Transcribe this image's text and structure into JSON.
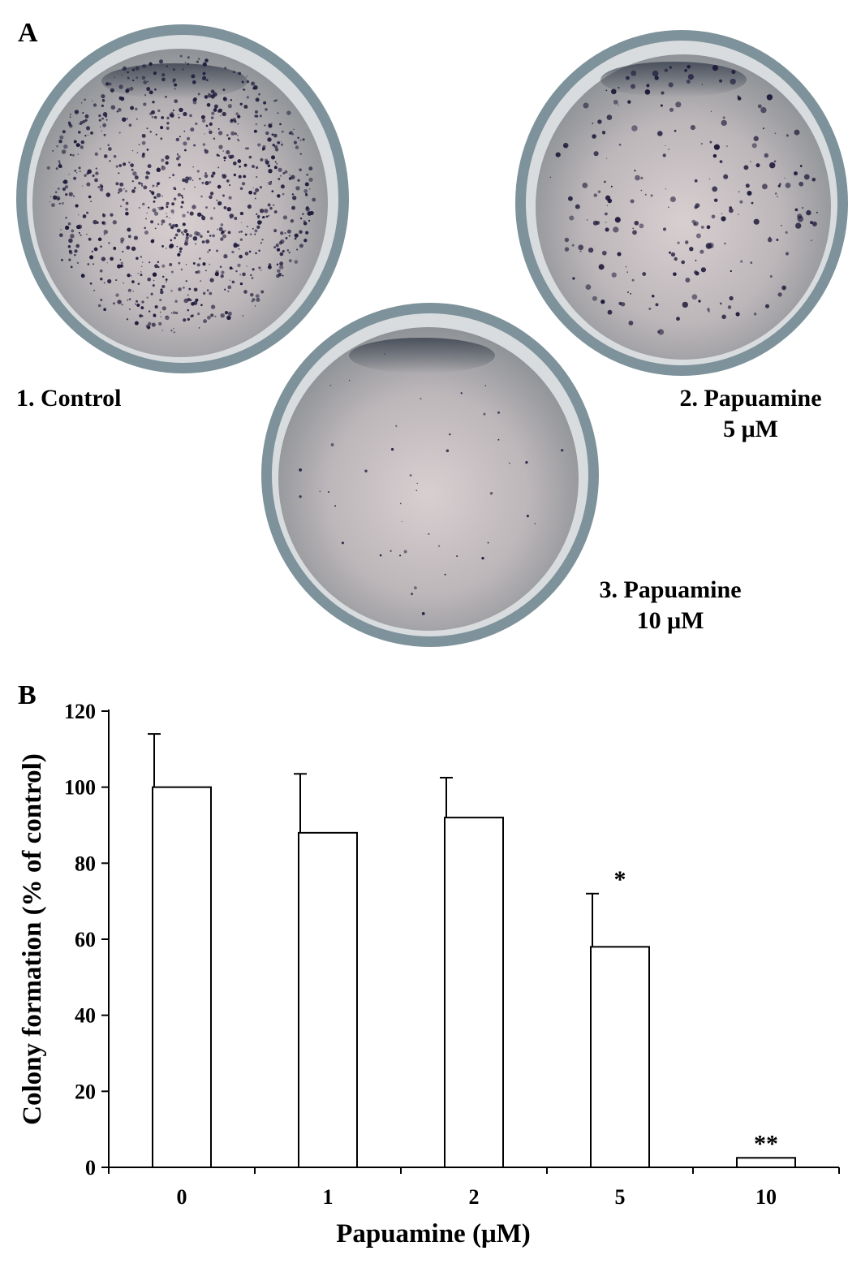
{
  "panelA": {
    "label": "A",
    "dishes": [
      {
        "caption_line1": "1. Control",
        "caption_line2": ""
      },
      {
        "caption_line1": "2. Papuamine",
        "caption_line2": "5 μM"
      },
      {
        "caption_line1": "3. Papuamine",
        "caption_line2": "10 μM"
      }
    ]
  },
  "panelB": {
    "label": "B"
  },
  "chart_data": {
    "type": "bar",
    "categories": [
      "0",
      "1",
      "2",
      "5",
      "10"
    ],
    "values": [
      100,
      88,
      92,
      58,
      2.5
    ],
    "errors": [
      14,
      15.5,
      10.5,
      14,
      0
    ],
    "significance": [
      "",
      "",
      "",
      "*",
      "**"
    ],
    "xlabel": "Papuamine (μM)",
    "ylabel": "Colony formation (% of control)",
    "ylim": [
      0,
      120
    ],
    "yticks": [
      "0",
      "20",
      "40",
      "60",
      "80",
      "100",
      "120"
    ],
    "grid": false,
    "legend": "none"
  },
  "colors": {
    "dish_rim": "#8fa3ab",
    "dish_inner": "#b9b5b6",
    "colony": "#1e1a3a",
    "bar_fill": "#ffffff",
    "axis": "#000000"
  }
}
